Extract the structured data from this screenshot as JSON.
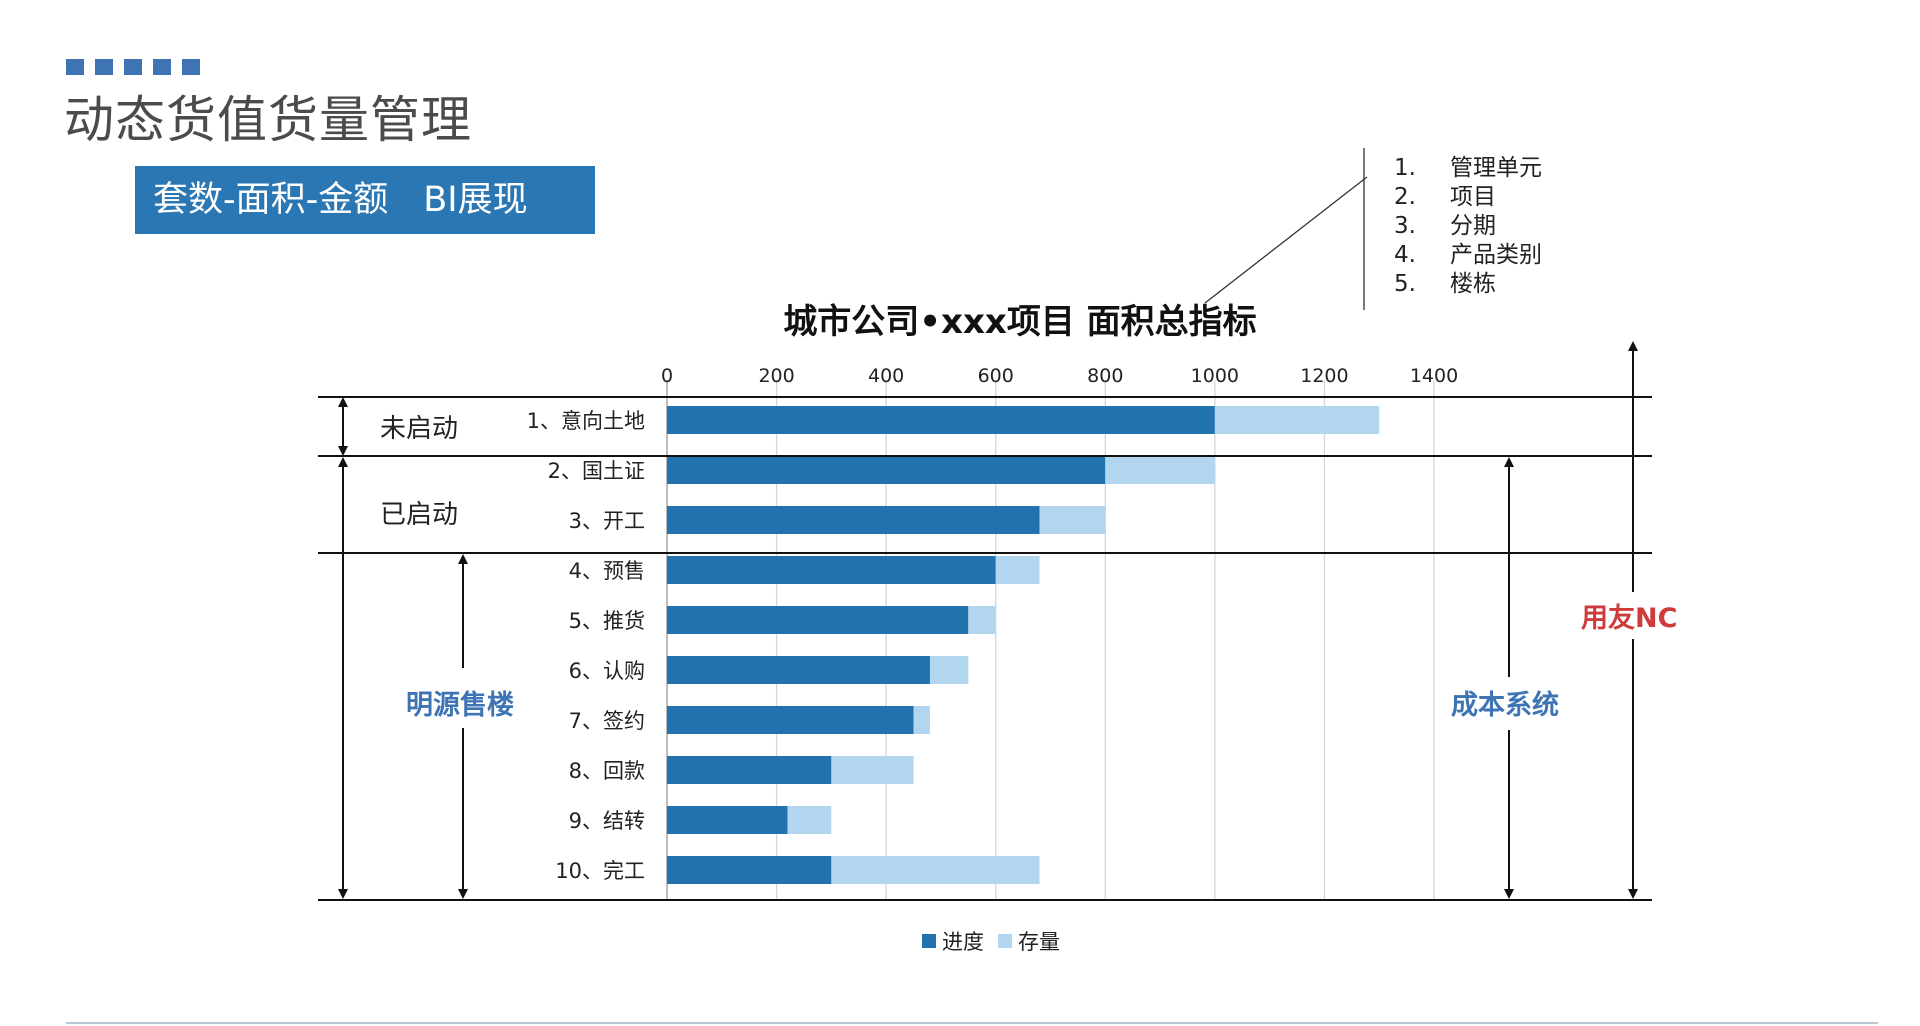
{
  "page": {
    "title": "动态货值货量管理",
    "banner": "套数-面积-金额　BI展现"
  },
  "dimensions": [
    {
      "num": "1.",
      "label": "管理单元"
    },
    {
      "num": "2.",
      "label": "项目"
    },
    {
      "num": "3.",
      "label": "分期"
    },
    {
      "num": "4.",
      "label": "产品类别"
    },
    {
      "num": "5.",
      "label": "楼栋"
    }
  ],
  "stage_labels": {
    "not_started": "未启动",
    "started": "已启动",
    "mingyuan": "明源售楼"
  },
  "systems": {
    "cost": "成本系统",
    "yonyou": "用友NC"
  },
  "colors": {
    "progress": "#2272ad",
    "stock": "#b3d6f0",
    "accent": "#2a77b3",
    "mingyuan": "#3f74b4",
    "yonyou": "#cf3b3b"
  },
  "chart_data": {
    "type": "bar",
    "orientation": "horizontal",
    "stacked": true,
    "title": "城市公司•xxx项目  面积总指标",
    "categories": [
      "1、意向土地",
      "2、国土证",
      "3、开工",
      "4、预售",
      "5、推货",
      "6、认购",
      "7、签约",
      "8、回款",
      "9、结转",
      "10、完工"
    ],
    "series": [
      {
        "name": "进度",
        "values": [
          1000,
          800,
          680,
          600,
          550,
          480,
          450,
          300,
          220,
          300
        ]
      },
      {
        "name": "存量",
        "values": [
          300,
          200,
          120,
          80,
          50,
          70,
          30,
          150,
          80,
          380
        ]
      }
    ],
    "xlim": [
      0,
      1400
    ],
    "xticks": [
      0,
      200,
      400,
      600,
      800,
      1000,
      1200,
      1400
    ],
    "axis_position": "top",
    "grid": true,
    "legend": "bottom"
  }
}
